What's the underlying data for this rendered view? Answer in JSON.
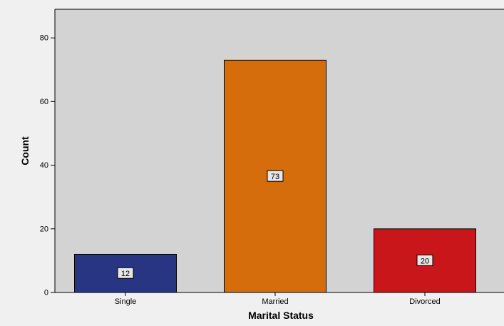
{
  "chart_data": {
    "type": "bar",
    "categories": [
      "Single",
      "Married",
      "Divorced"
    ],
    "values": [
      12,
      73,
      20
    ],
    "data_labels": [
      "12",
      "73",
      "20"
    ],
    "bar_colors": [
      "#283583",
      "#d56d0d",
      "#c8161b"
    ],
    "title": "",
    "xlabel": "Marital Status",
    "ylabel": "Count",
    "ylim": [
      0,
      89
    ],
    "yticks": [
      0,
      20,
      40,
      60,
      80
    ],
    "ytick_labels": [
      "0",
      "20",
      "40",
      "60",
      "80"
    ],
    "grid": false,
    "plot_background": "#d3d3d3",
    "page_background": "#f0f0f0"
  }
}
